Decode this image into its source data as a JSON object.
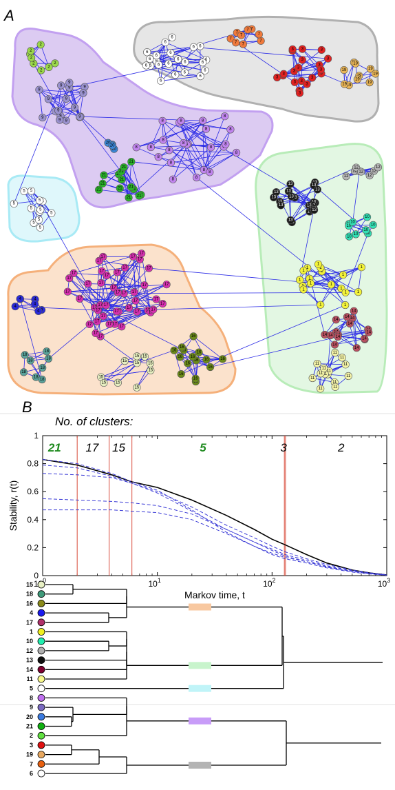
{
  "panels": {
    "a": "A",
    "b": "B"
  },
  "network": {
    "region_colors": {
      "grey": "#e6e6e6",
      "purple": "#dccbf2",
      "cyan": "#dff7fb",
      "green": "#e3f7e3",
      "orange": "#fbe2cc"
    },
    "edge_color": "#2a2ae6",
    "groups": [
      {
        "id": "2",
        "color": "#9bd84a"
      },
      {
        "id": "9",
        "color": "#9a92cf"
      },
      {
        "id": "6",
        "color": "#ffffff"
      },
      {
        "id": "7",
        "color": "#f07a3c"
      },
      {
        "id": "3",
        "color": "#e02222"
      },
      {
        "id": "19",
        "color": "#e8b457"
      },
      {
        "id": "8",
        "color": "#c084ee"
      },
      {
        "id": "20",
        "color": "#3b86d6"
      },
      {
        "id": "21",
        "color": "#29b229"
      },
      {
        "id": "5",
        "color": "#ffffff"
      },
      {
        "id": "13",
        "color": "#1a1a1a"
      },
      {
        "id": "12",
        "color": "#b5b5b5"
      },
      {
        "id": "10",
        "color": "#33e0b5"
      },
      {
        "id": "1",
        "color": "#f2f23a"
      },
      {
        "id": "14",
        "color": "#b85060"
      },
      {
        "id": "11",
        "color": "#f4f4a8"
      },
      {
        "id": "17",
        "color": "#d630b0"
      },
      {
        "id": "4",
        "color": "#2a2ad6"
      },
      {
        "id": "18",
        "color": "#5aa29a"
      },
      {
        "id": "16",
        "color": "#6b8a1a"
      },
      {
        "id": "15",
        "color": "#e6eec0"
      }
    ]
  },
  "chart_data": {
    "type": "line",
    "title": "No. of clusters:",
    "xlabel": "Markov time, t",
    "ylabel": "Stability, r(t)",
    "x_scale": "log",
    "xlim": [
      1,
      1000
    ],
    "ylim": [
      0,
      1
    ],
    "x_ticks": [
      {
        "base": "10",
        "exp": "0"
      },
      {
        "base": "10",
        "exp": "1"
      },
      {
        "base": "10",
        "exp": "2"
      },
      {
        "base": "10",
        "exp": "3"
      }
    ],
    "y_ticks": [
      "0",
      "0.2",
      "0.4",
      "0.6",
      "0.8",
      "1"
    ],
    "vertical_lines_t": [
      2.0,
      3.8,
      6.0,
      128,
      131
    ],
    "vertical_line_color": "#d84a3a",
    "cluster_counts": [
      {
        "label": "21",
        "t": 1.27,
        "color": "#1e8a1e",
        "bold": true
      },
      {
        "label": "17",
        "t": 2.7,
        "color": "#000000",
        "bold": false
      },
      {
        "label": "15",
        "t": 4.6,
        "color": "#000000",
        "bold": false
      },
      {
        "label": "5",
        "t": 25,
        "color": "#1e8a1e",
        "bold": true
      },
      {
        "label": "3",
        "t": 126,
        "color": "#000000",
        "bold": false
      },
      {
        "label": "2",
        "t": 400,
        "color": "#000000",
        "bold": false
      }
    ],
    "series": [
      {
        "style": "solid",
        "color": "#000000",
        "x": [
          1,
          2,
          4,
          6,
          10,
          20,
          40,
          70,
          100,
          130,
          200,
          300,
          500,
          700,
          1000
        ],
        "y": [
          0.83,
          0.79,
          0.72,
          0.67,
          0.63,
          0.54,
          0.43,
          0.33,
          0.26,
          0.22,
          0.15,
          0.09,
          0.04,
          0.02,
          0.005
        ]
      },
      {
        "style": "dashed",
        "color": "#3a3ad6",
        "x": [
          1,
          2,
          4,
          6,
          10,
          20,
          40,
          70,
          100,
          130,
          200,
          300,
          500,
          700,
          1000
        ],
        "y": [
          0.79,
          0.77,
          0.71,
          0.66,
          0.6,
          0.49,
          0.36,
          0.27,
          0.21,
          0.17,
          0.12,
          0.08,
          0.04,
          0.02,
          0.005
        ]
      },
      {
        "style": "dashed",
        "color": "#3a3ad6",
        "x": [
          1,
          2,
          4,
          6,
          10,
          20,
          40,
          70,
          100,
          130,
          200,
          300,
          500,
          700,
          1000
        ],
        "y": [
          0.73,
          0.72,
          0.7,
          0.66,
          0.59,
          0.46,
          0.33,
          0.24,
          0.19,
          0.15,
          0.11,
          0.07,
          0.035,
          0.02,
          0.005
        ]
      },
      {
        "style": "dashed",
        "color": "#3a3ad6",
        "x": [
          1,
          2,
          4,
          6,
          10,
          20,
          40,
          70,
          100,
          130,
          200,
          300,
          500,
          700,
          1000
        ],
        "y": [
          0.83,
          0.8,
          0.73,
          0.67,
          0.61,
          0.47,
          0.31,
          0.21,
          0.16,
          0.13,
          0.1,
          0.065,
          0.03,
          0.015,
          0.004
        ]
      },
      {
        "style": "dashed",
        "color": "#3a3ad6",
        "x": [
          1,
          2,
          4,
          6,
          10,
          20,
          40,
          70,
          100,
          130,
          200,
          300,
          500,
          700,
          1000
        ],
        "y": [
          0.55,
          0.54,
          0.53,
          0.52,
          0.5,
          0.44,
          0.33,
          0.24,
          0.18,
          0.14,
          0.1,
          0.06,
          0.03,
          0.015,
          0.004
        ]
      },
      {
        "style": "dashed",
        "color": "#3a3ad6",
        "x": [
          1,
          2,
          4,
          6,
          10,
          20,
          40,
          70,
          100,
          130,
          200,
          300,
          500,
          700,
          1000
        ],
        "y": [
          0.47,
          0.47,
          0.47,
          0.46,
          0.45,
          0.4,
          0.3,
          0.21,
          0.15,
          0.12,
          0.09,
          0.055,
          0.025,
          0.012,
          0.003
        ]
      }
    ]
  },
  "dendrogram": {
    "leaves": [
      {
        "label": "15",
        "color": "#e8f0c4"
      },
      {
        "label": "18",
        "color": "#3f9a7a"
      },
      {
        "label": "16",
        "color": "#8a8a1a"
      },
      {
        "label": "4",
        "color": "#1a1af0"
      },
      {
        "label": "17",
        "color": "#b0306a"
      },
      {
        "label": "1",
        "color": "#f0f020"
      },
      {
        "label": "10",
        "color": "#20f0b0"
      },
      {
        "label": "12",
        "color": "#b0b0b0"
      },
      {
        "label": "13",
        "color": "#101010"
      },
      {
        "label": "14",
        "color": "#800030"
      },
      {
        "label": "11",
        "color": "#f8f88a"
      },
      {
        "label": "5",
        "color": "#ffffff"
      },
      {
        "label": "8",
        "color": "#c070f0"
      },
      {
        "label": "9",
        "color": "#7a6ac0"
      },
      {
        "label": "20",
        "color": "#3a7ae0"
      },
      {
        "label": "21",
        "color": "#10b010"
      },
      {
        "label": "2",
        "color": "#60e040"
      },
      {
        "label": "3",
        "color": "#e01010"
      },
      {
        "label": "19",
        "color": "#e8a860"
      },
      {
        "label": "7",
        "color": "#e86010"
      },
      {
        "label": "6",
        "color": "#ffffff"
      }
    ],
    "cluster_markers": [
      {
        "color": "#f8c8a0"
      },
      {
        "color": "#c8f4cc"
      },
      {
        "color": "#c0f4f8"
      },
      {
        "color": "#c89cf8"
      },
      {
        "color": "#b4b4b4"
      }
    ]
  }
}
